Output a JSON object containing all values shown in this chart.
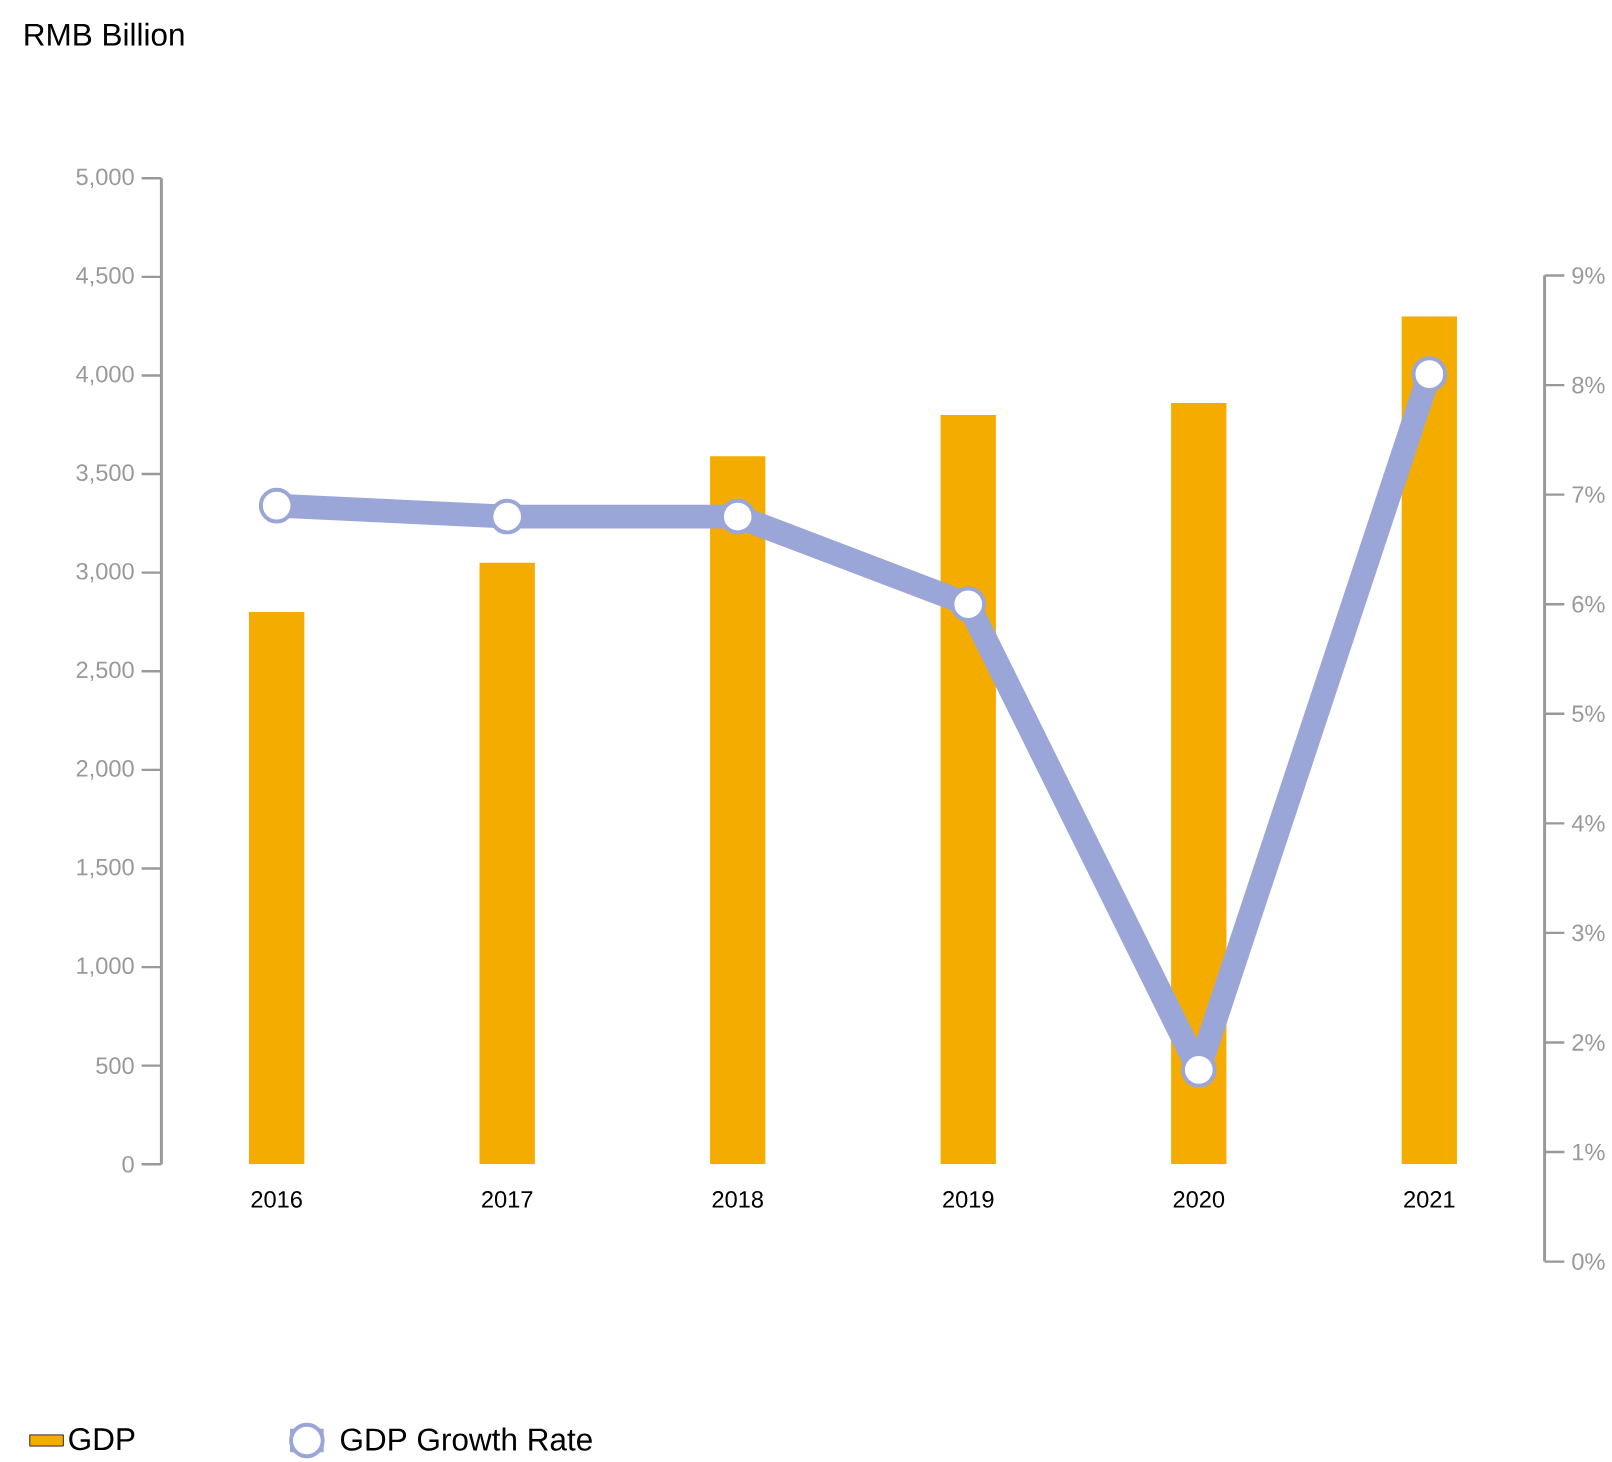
{
  "chart_data": {
    "type": "bar",
    "ylabel": "RMB Billion",
    "categories": [
      "2016",
      "2017",
      "2018",
      "2019",
      "2020",
      "2021"
    ],
    "series": [
      {
        "name": "GDP",
        "color": "#f5ac00",
        "values": [
          2800,
          3050,
          3590,
          3800,
          3860,
          4300
        ]
      },
      {
        "name": "GDP Growth Rate",
        "type": "line",
        "axis": "y2",
        "color": "#9ba6d8",
        "marker": "circle",
        "values": [
          6.9,
          6.8,
          6.8,
          6.0,
          1.75,
          8.1
        ]
      }
    ],
    "ylim": [
      0,
      5000
    ],
    "yticks": [
      {
        "value": 0,
        "label": "0"
      },
      {
        "value": 500,
        "label": "500"
      },
      {
        "value": 1000,
        "label": "1,000"
      },
      {
        "value": 1500,
        "label": "1,500"
      },
      {
        "value": 2000,
        "label": "2,000"
      },
      {
        "value": 2500,
        "label": "2,500"
      },
      {
        "value": 3000,
        "label": "3,000"
      },
      {
        "value": 3500,
        "label": "3,500"
      },
      {
        "value": 4000,
        "label": "4,000"
      },
      {
        "value": 4500,
        "label": "4,500"
      },
      {
        "value": 5000,
        "label": "5,000"
      }
    ],
    "y2lim": [
      0,
      9
    ],
    "y2ticks": [
      {
        "value": 0,
        "label": "0%"
      },
      {
        "value": 1,
        "label": "1%"
      },
      {
        "value": 2,
        "label": "2%"
      },
      {
        "value": 3,
        "label": "3%"
      },
      {
        "value": 4,
        "label": "4%"
      },
      {
        "value": 5,
        "label": "5%"
      },
      {
        "value": 6,
        "label": "6%"
      },
      {
        "value": 7,
        "label": "7%"
      },
      {
        "value": 8,
        "label": "8%"
      },
      {
        "value": 9,
        "label": "9%"
      }
    ],
    "grid": false,
    "legend": "bottom left"
  }
}
